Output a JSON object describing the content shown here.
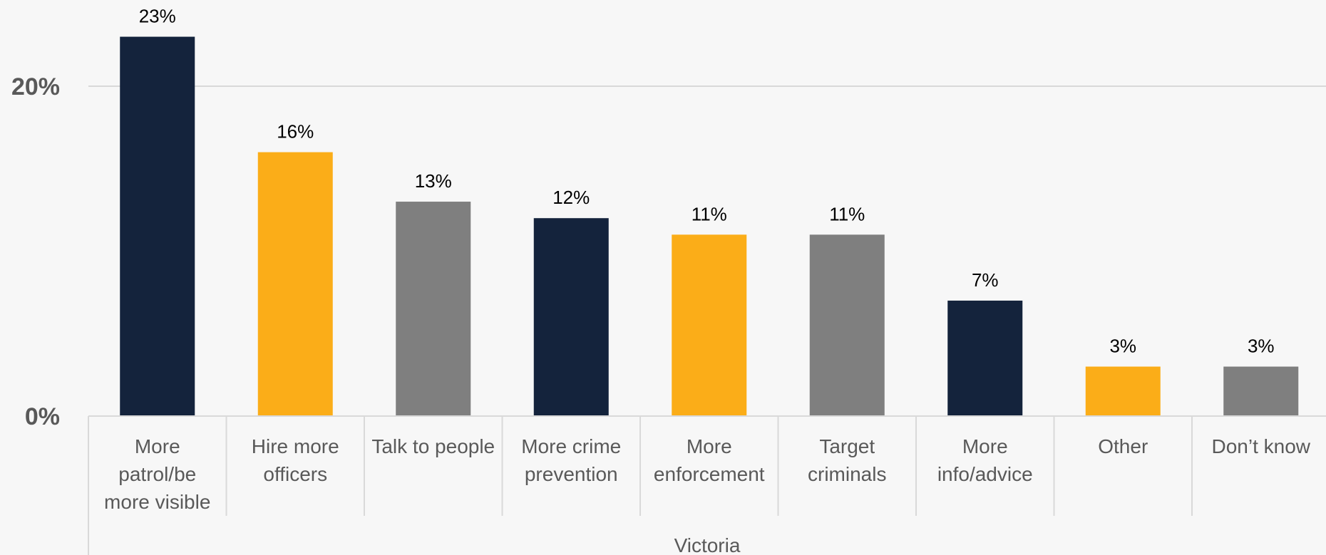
{
  "chart_data": {
    "type": "bar",
    "group_label": "Victoria",
    "categories": [
      [
        "More",
        "patrol/be",
        "more visible"
      ],
      [
        "Hire more",
        "officers"
      ],
      [
        "Talk to people"
      ],
      [
        "More crime",
        "prevention"
      ],
      [
        "More",
        "enforcement"
      ],
      [
        "Target",
        "criminals"
      ],
      [
        "More",
        "info/advice"
      ],
      [
        "Other"
      ],
      [
        "Don’t know"
      ]
    ],
    "values": [
      23,
      16,
      13,
      12,
      11,
      11,
      7,
      3,
      3
    ],
    "data_labels": [
      "23%",
      "16%",
      "13%",
      "12%",
      "11%",
      "11%",
      "7%",
      "3%",
      "3%"
    ],
    "bar_colors": [
      "#14233c",
      "#fbad18",
      "#7f7f7f",
      "#14233c",
      "#fbad18",
      "#7f7f7f",
      "#14233c",
      "#fbad18",
      "#7f7f7f"
    ],
    "ylim": [
      0,
      23
    ],
    "yticks": [
      0,
      20
    ],
    "ytick_labels": [
      "0%",
      "20%"
    ],
    "grid": true
  }
}
